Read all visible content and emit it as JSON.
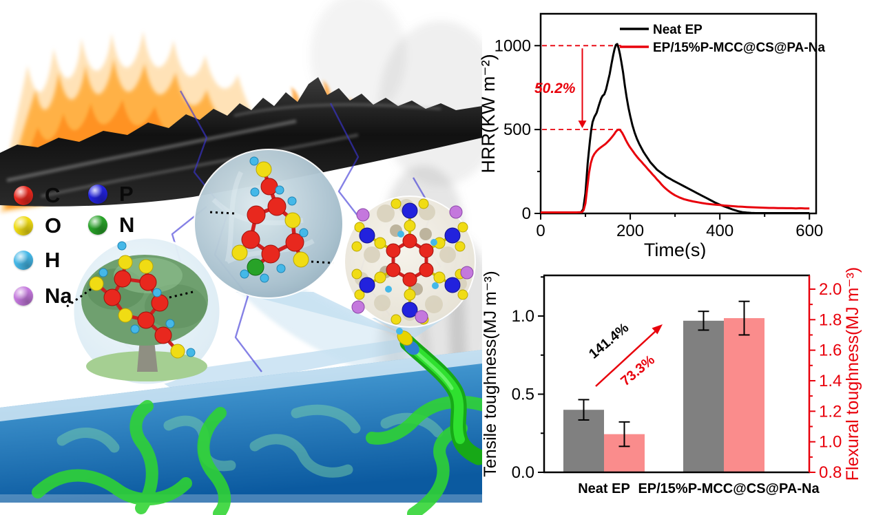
{
  "figure": {
    "description_visible_text_only": true,
    "illustration": {
      "legend": {
        "items": [
          {
            "element": "C",
            "color": "#e8281e"
          },
          {
            "element": "P",
            "color": "#2222dd"
          },
          {
            "element": "O",
            "color": "#f0dc14"
          },
          {
            "element": "N",
            "color": "#28a228"
          },
          {
            "element": "H",
            "color": "#45b8e8"
          },
          {
            "element": "Na",
            "color": "#c478dd"
          }
        ]
      }
    }
  },
  "chart_data": [
    {
      "id": "hrr",
      "type": "line",
      "title": "",
      "xlabel": "Time(s)",
      "ylabel": "HRR(KW m⁻²)",
      "xlim": [
        0,
        615
      ],
      "ylim": [
        0,
        1190
      ],
      "grid": false,
      "legend_position": "top-center",
      "xticks": [
        {
          "v": 0,
          "label": "0"
        },
        {
          "v": 200,
          "label": "200"
        },
        {
          "v": 400,
          "label": "400"
        },
        {
          "v": 600,
          "label": "600"
        }
      ],
      "xminor": [
        100,
        300,
        500
      ],
      "yticks": [
        {
          "v": 0,
          "label": "0"
        },
        {
          "v": 500,
          "label": "500"
        },
        {
          "v": 1000,
          "label": "1000"
        }
      ],
      "yminor": [
        250,
        750
      ],
      "annotation": {
        "label": "50.2%",
        "color": "#e8000b",
        "from_value": 1000,
        "to_value": 500,
        "arrow_time": 93,
        "dash_end_time": 185
      },
      "series": [
        {
          "name": "Neat EP",
          "color": "#000000",
          "peak": 1010,
          "points": [
            [
              0,
              5
            ],
            [
              20,
              5
            ],
            [
              40,
              5
            ],
            [
              60,
              5
            ],
            [
              80,
              5
            ],
            [
              90,
              6
            ],
            [
              95,
              25
            ],
            [
              100,
              120
            ],
            [
              105,
              300
            ],
            [
              110,
              430
            ],
            [
              113,
              500
            ],
            [
              116,
              545
            ],
            [
              120,
              575
            ],
            [
              125,
              600
            ],
            [
              130,
              645
            ],
            [
              135,
              685
            ],
            [
              138,
              700
            ],
            [
              142,
              710
            ],
            [
              146,
              740
            ],
            [
              150,
              785
            ],
            [
              154,
              830
            ],
            [
              158,
              890
            ],
            [
              162,
              945
            ],
            [
              165,
              980
            ],
            [
              168,
              1005
            ],
            [
              171,
              1010
            ],
            [
              174,
              985
            ],
            [
              177,
              950
            ],
            [
              180,
              905
            ],
            [
              184,
              840
            ],
            [
              188,
              760
            ],
            [
              192,
              690
            ],
            [
              196,
              630
            ],
            [
              200,
              580
            ],
            [
              205,
              525
            ],
            [
              210,
              480
            ],
            [
              215,
              445
            ],
            [
              220,
              415
            ],
            [
              225,
              390
            ],
            [
              230,
              365
            ],
            [
              235,
              345
            ],
            [
              240,
              325
            ],
            [
              245,
              305
            ],
            [
              250,
              290
            ],
            [
              255,
              275
            ],
            [
              260,
              260
            ],
            [
              265,
              250
            ],
            [
              270,
              240
            ],
            [
              275,
              230
            ],
            [
              280,
              220
            ],
            [
              285,
              212
            ],
            [
              290,
              205
            ],
            [
              295,
              197
            ],
            [
              300,
              190
            ],
            [
              310,
              176
            ],
            [
              320,
              162
            ],
            [
              330,
              148
            ],
            [
              340,
              134
            ],
            [
              350,
              120
            ],
            [
              360,
              106
            ],
            [
              370,
              92
            ],
            [
              380,
              78
            ],
            [
              390,
              64
            ],
            [
              400,
              52
            ],
            [
              410,
              42
            ],
            [
              420,
              32
            ],
            [
              430,
              22
            ],
            [
              440,
              14
            ],
            [
              450,
              8
            ],
            [
              460,
              5
            ],
            [
              470,
              3
            ],
            [
              480,
              2
            ],
            [
              500,
              2
            ],
            [
              520,
              2
            ],
            [
              540,
              2
            ],
            [
              560,
              2
            ],
            [
              580,
              2
            ],
            [
              600,
              2
            ]
          ]
        },
        {
          "name": "EP/15%P-MCC@CS@PA-Na",
          "color": "#e8000b",
          "peak": 500,
          "points": [
            [
              0,
              6
            ],
            [
              20,
              6
            ],
            [
              40,
              6
            ],
            [
              60,
              6
            ],
            [
              80,
              6
            ],
            [
              92,
              8
            ],
            [
              96,
              20
            ],
            [
              100,
              60
            ],
            [
              104,
              150
            ],
            [
              108,
              240
            ],
            [
              112,
              300
            ],
            [
              116,
              335
            ],
            [
              120,
              355
            ],
            [
              125,
              372
            ],
            [
              130,
              385
            ],
            [
              135,
              395
            ],
            [
              140,
              405
            ],
            [
              145,
              415
            ],
            [
              150,
              428
            ],
            [
              155,
              442
            ],
            [
              160,
              458
            ],
            [
              164,
              472
            ],
            [
              168,
              488
            ],
            [
              172,
              498
            ],
            [
              175,
              500
            ],
            [
              178,
              495
            ],
            [
              182,
              480
            ],
            [
              186,
              460
            ],
            [
              190,
              438
            ],
            [
              194,
              418
            ],
            [
              198,
              400
            ],
            [
              202,
              385
            ],
            [
              206,
              370
            ],
            [
              210,
              355
            ],
            [
              215,
              338
            ],
            [
              220,
              322
            ],
            [
              225,
              308
            ],
            [
              230,
              292
            ],
            [
              235,
              278
            ],
            [
              240,
              262
            ],
            [
              245,
              248
            ],
            [
              250,
              232
            ],
            [
              255,
              218
            ],
            [
              260,
              202
            ],
            [
              265,
              188
            ],
            [
              270,
              172
            ],
            [
              275,
              158
            ],
            [
              280,
              146
            ],
            [
              285,
              135
            ],
            [
              290,
              125
            ],
            [
              295,
              116
            ],
            [
              300,
              108
            ],
            [
              310,
              95
            ],
            [
              320,
              85
            ],
            [
              330,
              78
            ],
            [
              340,
              72
            ],
            [
              350,
              67
            ],
            [
              360,
              62
            ],
            [
              370,
              58
            ],
            [
              380,
              55
            ],
            [
              390,
              52
            ],
            [
              400,
              50
            ],
            [
              410,
              47
            ],
            [
              420,
              45
            ],
            [
              430,
              43
            ],
            [
              440,
              41
            ],
            [
              450,
              40
            ],
            [
              460,
              38
            ],
            [
              470,
              37
            ],
            [
              480,
              36
            ],
            [
              490,
              35
            ],
            [
              500,
              34
            ],
            [
              510,
              33
            ],
            [
              520,
              33
            ],
            [
              530,
              32
            ],
            [
              540,
              32
            ],
            [
              550,
              31
            ],
            [
              560,
              31
            ],
            [
              570,
              30
            ],
            [
              580,
              31
            ],
            [
              590,
              30
            ],
            [
              600,
              30
            ]
          ]
        }
      ]
    },
    {
      "id": "toughness",
      "type": "bar",
      "title": "",
      "categories": [
        "Neat EP",
        "EP/15%P-MCC@CS@PA-Na"
      ],
      "left_axis": {
        "label": "Tensile toughness(MJ m⁻³)",
        "color": "#000000",
        "range": [
          0,
          1.26
        ],
        "ticks": [
          {
            "v": 0,
            "label": "0.0"
          },
          {
            "v": 0.5,
            "label": "0.5"
          },
          {
            "v": 1.0,
            "label": "1.0"
          }
        ],
        "minor": [
          0.25,
          0.75,
          1.25
        ]
      },
      "right_axis": {
        "label": "Flexural toughness(MJ m⁻³)",
        "color": "#e8000b",
        "range": [
          0.8,
          2.09
        ],
        "ticks": [
          {
            "v": 0.8,
            "label": "0.8"
          },
          {
            "v": 1.0,
            "label": "1.0"
          },
          {
            "v": 1.2,
            "label": "1.2"
          },
          {
            "v": 1.4,
            "label": "1.4"
          },
          {
            "v": 1.6,
            "label": "1.6"
          },
          {
            "v": 1.8,
            "label": "1.8"
          },
          {
            "v": 2.0,
            "label": "2.0"
          }
        ],
        "minor": [
          0.9,
          1.1,
          1.3,
          1.5,
          1.7,
          1.9
        ]
      },
      "series": [
        {
          "name": "Tensile toughness",
          "axis": "left",
          "color": "#808080",
          "values": [
            0.4,
            0.97
          ],
          "errors": [
            0.065,
            0.06
          ]
        },
        {
          "name": "Flexural toughness",
          "axis": "right",
          "color": "#fa8c8c",
          "values": [
            1.05,
            1.81
          ],
          "errors": [
            0.08,
            0.11
          ]
        }
      ],
      "error_bar_color": "#000000",
      "annotations": [
        {
          "label": "141.4%",
          "color": "#000000"
        },
        {
          "label": "73.3%",
          "color": "#e8000b"
        }
      ],
      "arrow_color": "#e8000b"
    }
  ]
}
